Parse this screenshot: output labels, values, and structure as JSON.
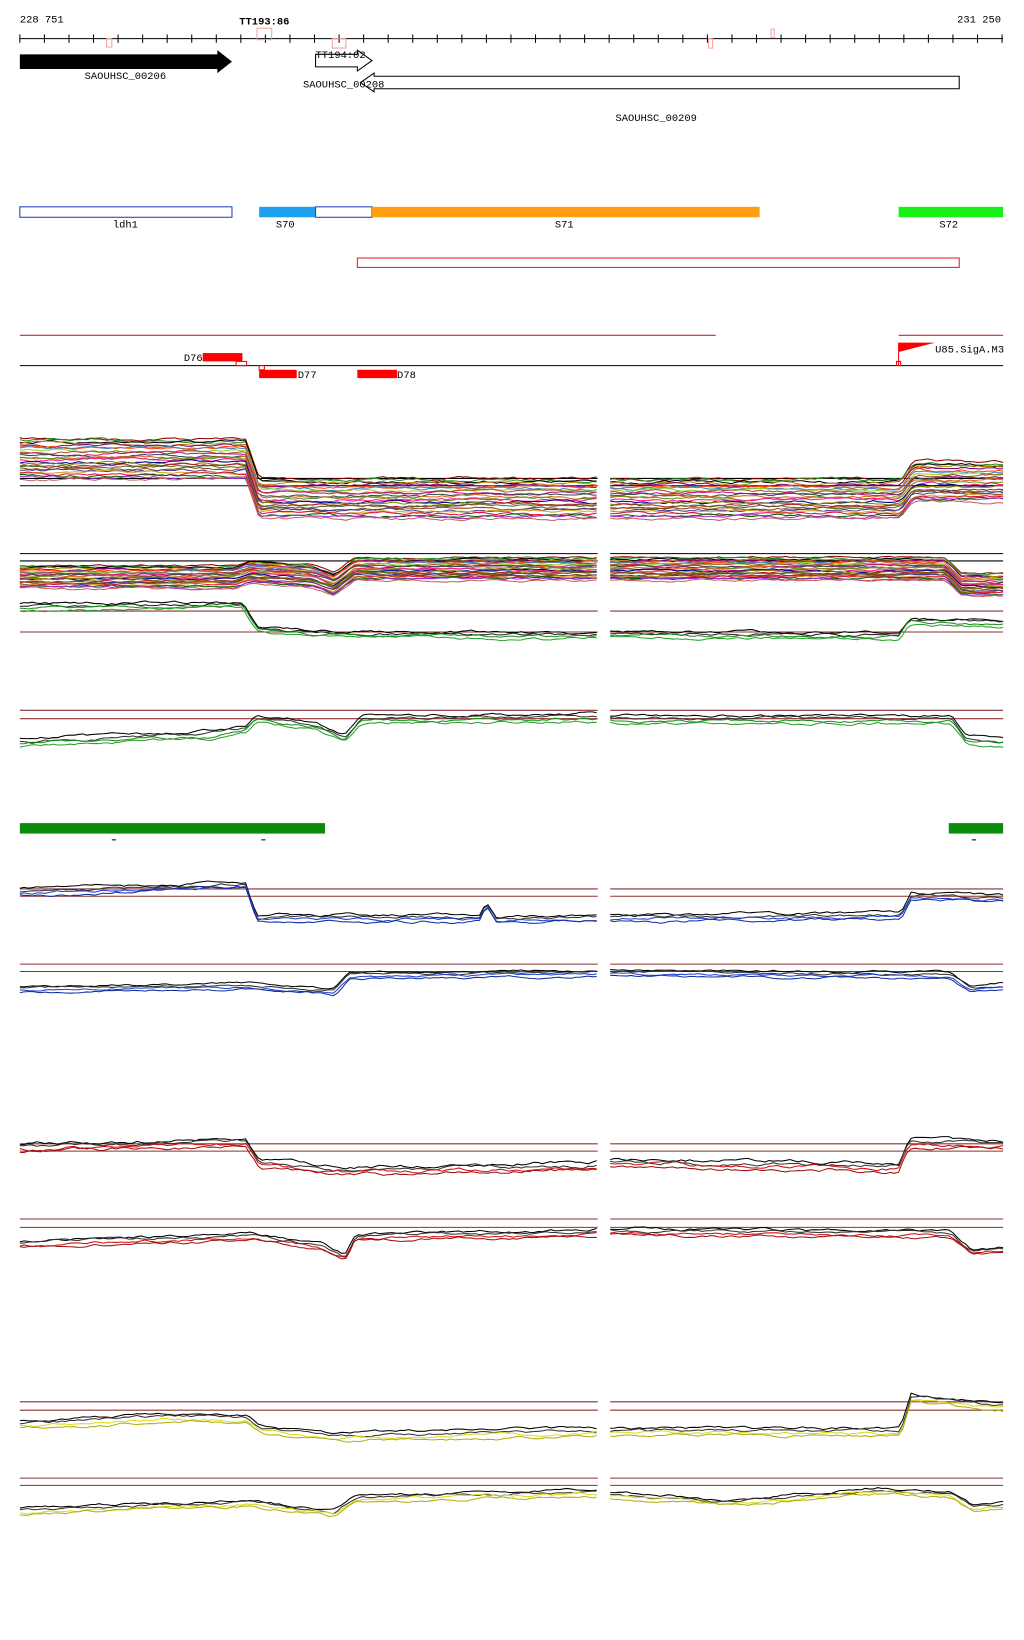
{
  "ruler": {
    "start": "228 751",
    "end": "231 250",
    "marker": "TT193:86"
  },
  "genes": [
    {
      "label": "SAOUHSC_00206"
    },
    {
      "label": "TT194:02"
    },
    {
      "label": "SAOUHSC_00208"
    },
    {
      "label": "SAOUHSC_00209"
    }
  ],
  "segments": [
    {
      "label": "ldh1"
    },
    {
      "label": "S70"
    },
    {
      "label": "S71"
    },
    {
      "label": "S72"
    }
  ],
  "features": [
    {
      "label": "D76"
    },
    {
      "label": "D77"
    },
    {
      "label": "D78"
    },
    {
      "label": "U85.SigA.M3"
    }
  ]
}
